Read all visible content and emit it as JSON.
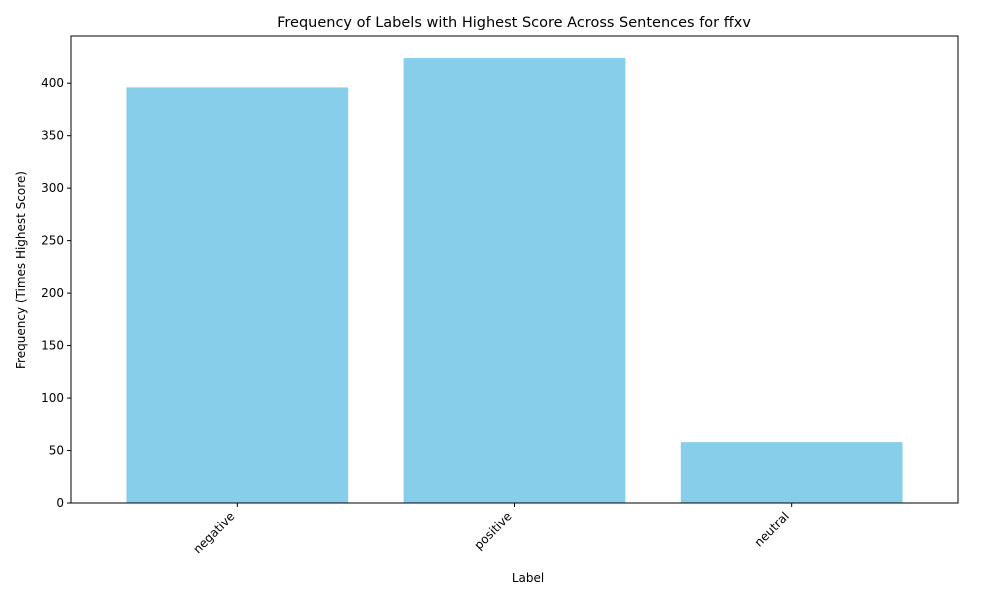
{
  "chart_data": {
    "type": "bar",
    "title": "Frequency of Labels with Highest Score Across Sentences for ffxv",
    "xlabel": "Label",
    "ylabel": "Frequency (Times Highest Score)",
    "categories": [
      "negative",
      "positive",
      "neutral"
    ],
    "values": [
      396,
      424,
      58
    ],
    "ylim": [
      0,
      445
    ],
    "yticks": [
      0,
      50,
      100,
      150,
      200,
      250,
      300,
      350,
      400
    ],
    "bar_color": "#87ceeb",
    "grid": false
  }
}
